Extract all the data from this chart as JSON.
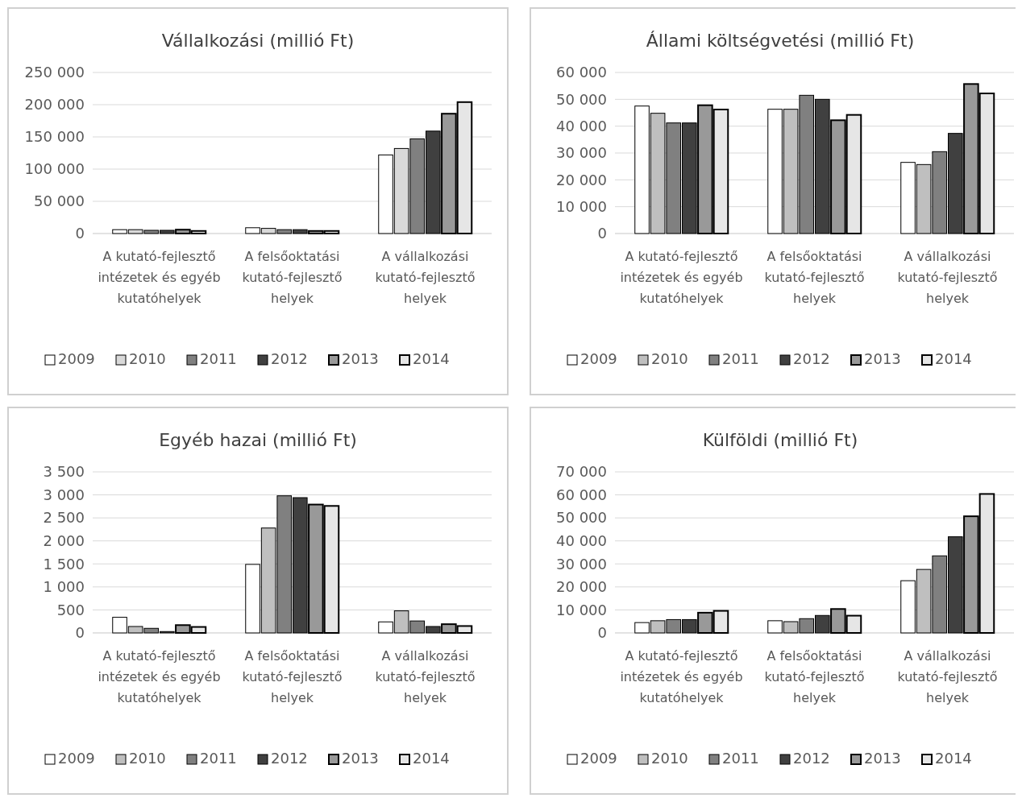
{
  "chart_data": [
    {
      "type": "bar",
      "title": "Vállalkozási (millió Ft)",
      "categories": [
        "A kutató-fejlesztő intézetek és egyéb kutatóhelyek",
        "A felsőoktatási kutató-fejlesztő helyek",
        "A vállalkozási kutató-fejlesztő helyek"
      ],
      "series": [
        {
          "name": "2009",
          "color": "#ffffff",
          "values": [
            6000,
            9000,
            122000
          ]
        },
        {
          "name": "2010",
          "color": "#d9d9d9",
          "values": [
            6000,
            8000,
            132000
          ]
        },
        {
          "name": "2011",
          "color": "#808080",
          "values": [
            5000,
            6000,
            147000
          ]
        },
        {
          "name": "2012",
          "color": "#404040",
          "values": [
            5000,
            6000,
            159000
          ]
        },
        {
          "name": "2013",
          "color": "#999999",
          "values": [
            6000,
            4000,
            186000
          ]
        },
        {
          "name": "2014",
          "color": "#e6e6e6",
          "values": [
            4000,
            4000,
            204000
          ]
        }
      ],
      "ylim": [
        0,
        250000
      ],
      "yticks": [
        {
          "value": 0,
          "label": "0"
        },
        {
          "value": 50000,
          "label": "50 000"
        },
        {
          "value": 100000,
          "label": "100 000"
        },
        {
          "value": 150000,
          "label": "150 000"
        },
        {
          "value": 200000,
          "label": "200 000"
        },
        {
          "value": 250000,
          "label": "250 000"
        }
      ],
      "grid": "y",
      "legend": "bottom"
    },
    {
      "type": "bar",
      "title": "Állami költségvetési (millió Ft)",
      "categories": [
        "A kutató-fejlesztő intézetek és egyéb kutatóhelyek",
        "A felsőoktatási kutató-fejlesztő helyek",
        "A vállalkozási kutató-fejlesztő helyek"
      ],
      "series": [
        {
          "name": "2009",
          "color": "#ffffff",
          "values": [
            47500,
            46300,
            26500
          ]
        },
        {
          "name": "2010",
          "color": "#bfbfbf",
          "values": [
            44800,
            46300,
            25700
          ]
        },
        {
          "name": "2011",
          "color": "#808080",
          "values": [
            41200,
            51500,
            30500
          ]
        },
        {
          "name": "2012",
          "color": "#404040",
          "values": [
            41200,
            50000,
            37300
          ]
        },
        {
          "name": "2013",
          "color": "#999999",
          "values": [
            47800,
            42200,
            55700
          ]
        },
        {
          "name": "2014",
          "color": "#e6e6e6",
          "values": [
            46200,
            44200,
            52200
          ]
        }
      ],
      "ylim": [
        0,
        60000
      ],
      "yticks": [
        {
          "value": 0,
          "label": "0"
        },
        {
          "value": 10000,
          "label": "10 000"
        },
        {
          "value": 20000,
          "label": "20 000"
        },
        {
          "value": 30000,
          "label": "30 000"
        },
        {
          "value": 40000,
          "label": "40 000"
        },
        {
          "value": 50000,
          "label": "50 000"
        },
        {
          "value": 60000,
          "label": "60 000"
        }
      ],
      "grid": "y",
      "legend": "bottom"
    },
    {
      "type": "bar",
      "title": "Egyéb hazai (millió Ft)",
      "categories": [
        "A kutató-fejlesztő intézetek és egyéb kutatóhelyek",
        "A felsőoktatási kutató-fejlesztő helyek",
        "A vállalkozási kutató-fejlesztő helyek"
      ],
      "series": [
        {
          "name": "2009",
          "color": "#ffffff",
          "values": [
            340,
            1490,
            240
          ]
        },
        {
          "name": "2010",
          "color": "#bfbfbf",
          "values": [
            140,
            2280,
            480
          ]
        },
        {
          "name": "2011",
          "color": "#808080",
          "values": [
            100,
            2980,
            260
          ]
        },
        {
          "name": "2012",
          "color": "#404040",
          "values": [
            30,
            2940,
            140
          ]
        },
        {
          "name": "2013",
          "color": "#999999",
          "values": [
            170,
            2790,
            190
          ]
        },
        {
          "name": "2014",
          "color": "#e6e6e6",
          "values": [
            130,
            2760,
            150
          ]
        }
      ],
      "ylim": [
        0,
        3500
      ],
      "yticks": [
        {
          "value": 0,
          "label": "0"
        },
        {
          "value": 500,
          "label": "500"
        },
        {
          "value": 1000,
          "label": "1 000"
        },
        {
          "value": 1500,
          "label": "1 500"
        },
        {
          "value": 2000,
          "label": "2 000"
        },
        {
          "value": 2500,
          "label": "2 500"
        },
        {
          "value": 3000,
          "label": "3 000"
        },
        {
          "value": 3500,
          "label": "3 500"
        }
      ],
      "grid": "y",
      "legend": "bottom"
    },
    {
      "type": "bar",
      "title": "Külföldi (millió Ft)",
      "categories": [
        "A kutató-fejlesztő intézetek és egyéb kutatóhelyek",
        "A felsőoktatási kutató-fejlesztő helyek",
        "A vállalkozási kutató-fejlesztő helyek"
      ],
      "series": [
        {
          "name": "2009",
          "color": "#ffffff",
          "values": [
            4500,
            5300,
            22700
          ]
        },
        {
          "name": "2010",
          "color": "#bfbfbf",
          "values": [
            5300,
            4900,
            27600
          ]
        },
        {
          "name": "2011",
          "color": "#808080",
          "values": [
            5800,
            6200,
            33500
          ]
        },
        {
          "name": "2012",
          "color": "#404040",
          "values": [
            5800,
            7600,
            41800
          ]
        },
        {
          "name": "2013",
          "color": "#999999",
          "values": [
            8800,
            10400,
            50700
          ]
        },
        {
          "name": "2014",
          "color": "#e6e6e6",
          "values": [
            9600,
            7500,
            60400
          ]
        }
      ],
      "ylim": [
        0,
        70000
      ],
      "yticks": [
        {
          "value": 0,
          "label": "0"
        },
        {
          "value": 10000,
          "label": "10 000"
        },
        {
          "value": 20000,
          "label": "20 000"
        },
        {
          "value": 30000,
          "label": "30 000"
        },
        {
          "value": 40000,
          "label": "40 000"
        },
        {
          "value": 50000,
          "label": "50 000"
        },
        {
          "value": 60000,
          "label": "60 000"
        },
        {
          "value": 70000,
          "label": "70 000"
        }
      ],
      "grid": "y",
      "legend": "bottom"
    }
  ]
}
